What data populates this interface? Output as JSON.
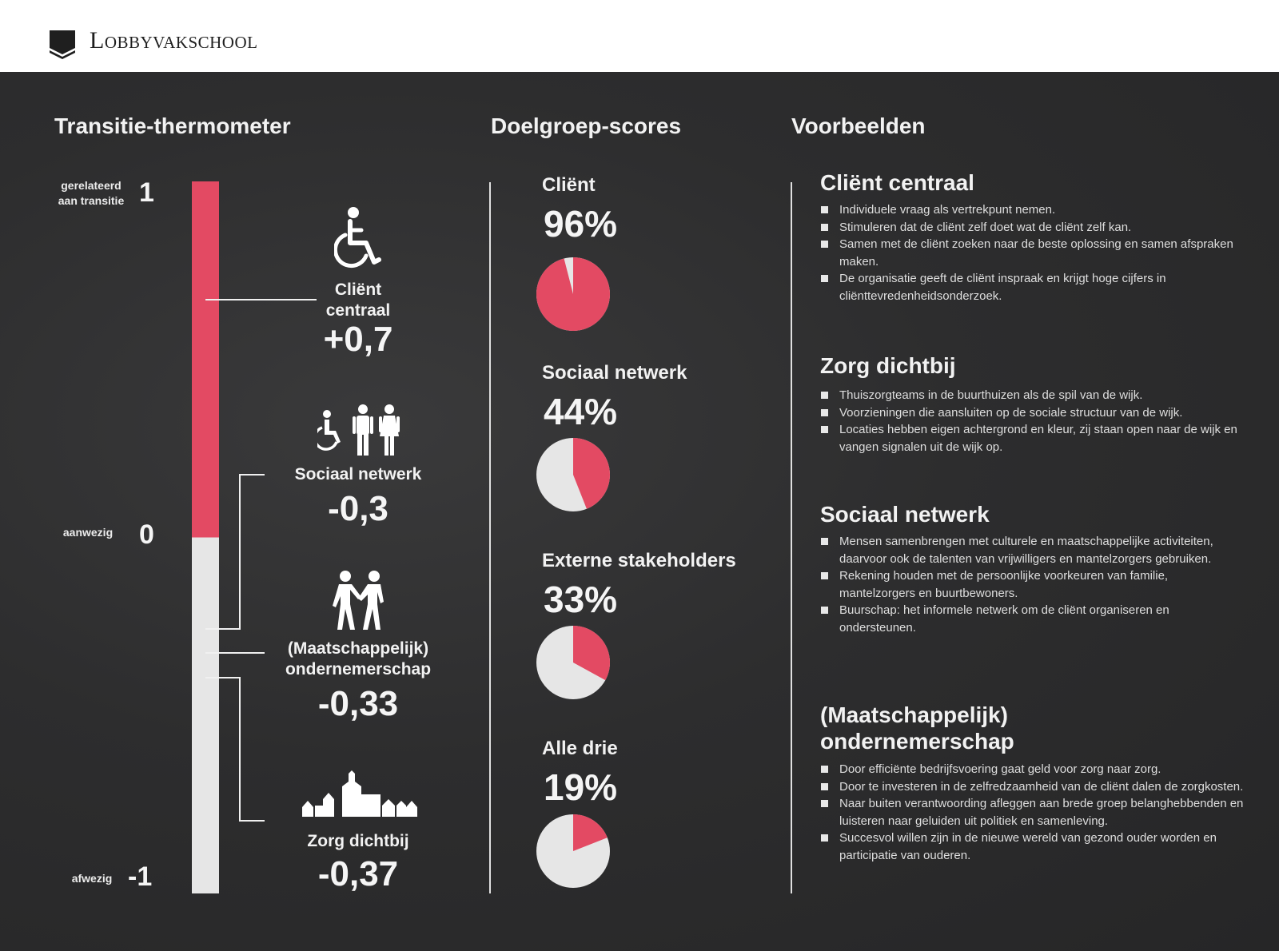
{
  "header": {
    "brand": "Lobbyvakschool"
  },
  "columns": {
    "thermometer_title": "Transitie-thermometer",
    "scores_title": "Doelgroep-scores",
    "examples_title": "Voorbeelden"
  },
  "thermometer": {
    "top_label": "gerelateerd\naan transitie",
    "top_value": "1",
    "mid_label": "aanwezig",
    "mid_value": "0",
    "bottom_label": "afwezig",
    "bottom_value": "-1"
  },
  "categories": [
    {
      "name": "Cliënt\ncentraal",
      "score": "+0,7",
      "icon": "wheelchair-icon"
    },
    {
      "name": "Sociaal netwerk",
      "score": "-0,3",
      "icon": "family-icon"
    },
    {
      "name": "(Maatschappelijk)\nondernemerschap",
      "score": "-0,33",
      "icon": "handshake-icon"
    },
    {
      "name": "Zorg dichtbij",
      "score": "-0,37",
      "icon": "village-icon"
    }
  ],
  "chart_data": {
    "type": "pie",
    "colors": {
      "highlight": "#e34a63",
      "rest": "#e6e6e6",
      "thermometer_filled": "#e34a63",
      "thermometer_empty": "#e6e6e6"
    },
    "thermometer": {
      "ylim": [
        -1,
        1
      ],
      "filled_to": 0
    },
    "scores": [
      {
        "label": "Cliënt",
        "display": "96%",
        "value": 96
      },
      {
        "label": "Sociaal netwerk",
        "display": "44%",
        "value": 44
      },
      {
        "label": "Externe stakeholders",
        "display": "33%",
        "value": 33
      },
      {
        "label": "Alle drie",
        "display": "19%",
        "value": 19
      }
    ]
  },
  "examples": [
    {
      "title": "Cliënt centraal",
      "items": [
        "Individuele vraag als vertrekpunt nemen.",
        "Stimuleren dat de cliënt zelf doet wat de cliënt zelf kan.",
        "Samen met de cliënt zoeken naar de beste oplossing en samen afspraken maken.",
        "De organisatie geeft de cliënt inspraak en krijgt hoge cijfers in cliënttevredenheidsonderzoek."
      ]
    },
    {
      "title": "Zorg dichtbij",
      "items": [
        "Thuiszorgteams in de buurthuizen als de spil van de wijk.",
        "Voorzieningen die aansluiten op de sociale structuur van de wijk.",
        "Locaties hebben eigen achtergrond en kleur, zij staan open naar de wijk en vangen signalen uit de wijk op."
      ]
    },
    {
      "title": "Sociaal netwerk",
      "items": [
        "Mensen samenbrengen met culturele en maatschappelijke activiteiten, daarvoor ook de talenten van vrijwilligers en mantelzorgers gebruiken.",
        "Rekening houden met de persoonlijke voorkeuren van familie, mantelzorgers en buurtbewoners.",
        "Buurschap: het informele netwerk om de cliënt organiseren en ondersteunen."
      ]
    },
    {
      "title": "(Maatschappelijk)\nondernemerschap",
      "items": [
        "Door efficiënte bedrijfsvoering gaat geld voor zorg naar zorg.",
        "Door te investeren in de zelfredzaamheid van de cliënt dalen de zorgkosten.",
        "Naar buiten verantwoording afleggen aan brede groep belanghebbenden en luisteren naar geluiden uit politiek en samenleving.",
        "Succesvol willen zijn in de nieuwe wereld van gezond ouder worden en participatie van ouderen."
      ]
    }
  ]
}
